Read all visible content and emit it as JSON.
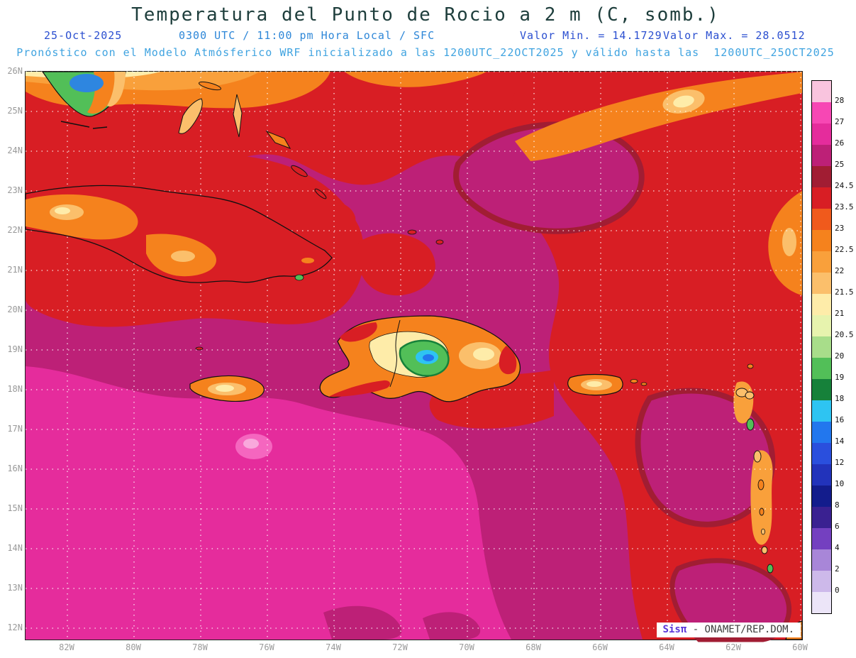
{
  "header": {
    "title": "Temperatura del Punto de Rocio a 2 m (C, somb.)",
    "date": "25-Oct-2025",
    "run_info": "0300 UTC / 11:00 pm Hora Local / SFC",
    "valor_min": "Valor Min. = 14.1729",
    "valor_max": "Valor Max. = 28.0512",
    "model_line": "Pronóstico con el Modelo Atmósferico WRF inicializado a las 1200UTC_22OCT2025 y válido hasta las  1200UTC_25OCT2025"
  },
  "map": {
    "lat_ticks": [
      "26N",
      "25N",
      "24N",
      "23N",
      "22N",
      "21N",
      "20N",
      "19N",
      "18N",
      "17N",
      "16N",
      "15N",
      "14N",
      "13N",
      "12N"
    ],
    "lon_ticks": [
      "82W",
      "80W",
      "78W",
      "76W",
      "74W",
      "72W",
      "70W",
      "68W",
      "66W",
      "64W",
      "62W",
      "60W"
    ],
    "watermark_brand": "Sisπ ",
    "watermark_rest": "- ONAMET/REP.DOM."
  },
  "colorbar": {
    "labels": [
      "28",
      "27",
      "26",
      "25",
      "24.5",
      "23.5",
      "23",
      "22.5",
      "22",
      "21.5",
      "21",
      "20.5",
      "20",
      "19",
      "18",
      "16",
      "14",
      "12",
      "10",
      "8",
      "6",
      "4",
      "2",
      "0"
    ],
    "colors": [
      "#f9c4de",
      "#f747b4",
      "#e52c9c",
      "#bd2077",
      "#a11d33",
      "#d81e24",
      "#f05a1c",
      "#f5821d",
      "#f9a03b",
      "#fbbf6b",
      "#feeca9",
      "#e7f3ae",
      "#a8dd8a",
      "#52bf58",
      "#16813a",
      "#2ec4f2",
      "#2277ee",
      "#2a4fdd",
      "#2233bb",
      "#131c8c",
      "#3a2191",
      "#7440c0",
      "#a886d8",
      "#cdb9ea",
      "#ece5f8"
    ]
  },
  "chart_data": {
    "type": "heatmap",
    "title": "Temperatura del Punto de Rocio a 2 m (C, somb.)",
    "variable": "Dew point temperature at 2 m, shaded (C)",
    "model": "WRF",
    "init_time": "1200UTC_22OCT2025",
    "valid_time": "1200UTC_25OCT2025",
    "valid_local": "25-Oct-2025 0300 UTC / 11:00 pm Hora Local / SFC",
    "level": "SFC",
    "value_min": 14.1729,
    "value_max": 28.0512,
    "x_ticks_lon": [
      "82W",
      "80W",
      "78W",
      "76W",
      "74W",
      "72W",
      "70W",
      "68W",
      "66W",
      "64W",
      "62W",
      "60W"
    ],
    "y_ticks_lat": [
      "26N",
      "25N",
      "24N",
      "23N",
      "22N",
      "21N",
      "20N",
      "19N",
      "18N",
      "17N",
      "16N",
      "15N",
      "14N",
      "13N",
      "12N"
    ],
    "contour_levels_c": [
      0,
      2,
      4,
      6,
      8,
      10,
      12,
      14,
      16,
      18,
      19,
      20,
      20.5,
      21,
      21.5,
      22,
      22.5,
      23,
      23.5,
      24.5,
      25,
      26,
      27,
      28
    ],
    "legend_position": "right",
    "grid": true,
    "regions_estimated": [
      {
        "area": "Atlantic waters north of ~23N (top band)",
        "dewpoint_c": 24.0
      },
      {
        "area": "Top-edge and NE diagonal orange streaks",
        "dewpoint_c": 22.0
      },
      {
        "area": "Central basin between Cuba and Hispaniola",
        "dewpoint_c": 25.5
      },
      {
        "area": "SW Caribbean below ~17.5N west of ~70W (bright pink)",
        "dewpoint_c": 26.5
      },
      {
        "area": "Small pale-pink spot near 76W,16.5N",
        "dewpoint_c": 27.5
      },
      {
        "area": "Eastern sector east of ~67W",
        "dewpoint_c": 24.0
      },
      {
        "area": "Hispaniola central highlands (green core)",
        "dewpoint_c": 19.5
      },
      {
        "area": "Hispaniola highland blue core (local minimum)",
        "dewpoint_c": 14.2
      },
      {
        "area": "Island coasts / lowlands (Cuba, Jamaica, Puerto Rico)",
        "dewpoint_c": 21.5
      },
      {
        "area": "South Florida tip (green, blue lake)",
        "dewpoint_c": 17.0
      }
    ]
  }
}
